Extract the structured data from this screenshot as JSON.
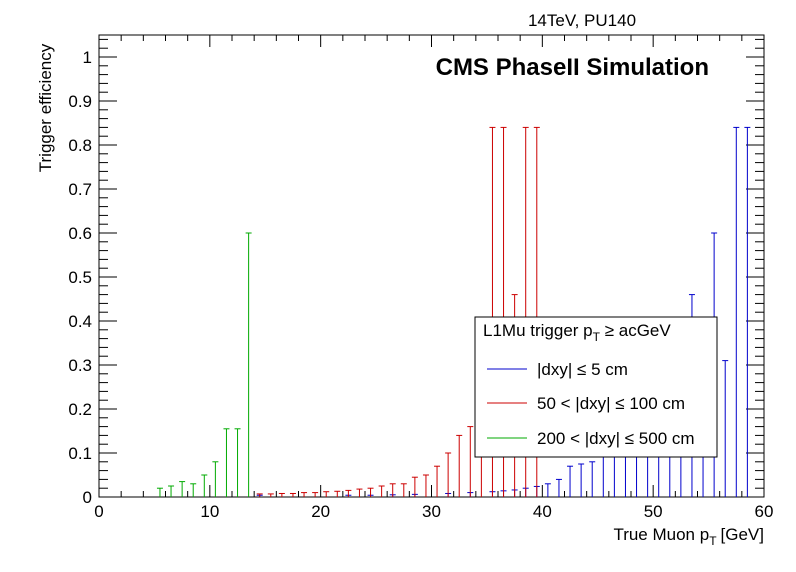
{
  "chart_data": {
    "type": "scatter",
    "top_label": "14TeV, PU140",
    "watermark": "CMS PhaseII Simulation",
    "xlabel_main": "True Muon p",
    "xlabel_sub": "T",
    "xlabel_unit": "[GeV]",
    "ylabel": "Trigger efficiency",
    "xlim": [
      0,
      60
    ],
    "ylim": [
      0,
      1.05
    ],
    "x_ticks": [
      0,
      10,
      20,
      30,
      40,
      50,
      60
    ],
    "y_ticks": [
      0,
      0.1,
      0.2,
      0.3,
      0.4,
      0.5,
      0.6,
      0.7,
      0.8,
      0.9,
      1
    ],
    "x_tick_labels": [
      "0",
      "10",
      "20",
      "30",
      "40",
      "50",
      "60"
    ],
    "y_tick_labels": [
      "0",
      "0.1",
      "0.2",
      "0.3",
      "0.4",
      "0.5",
      "0.6",
      "0.7",
      "0.8",
      "0.9",
      "1"
    ],
    "legend": {
      "header_main": "L1Mu trigger p",
      "header_sub": "T",
      "header_tail": " ≥ acGeV",
      "placement": "lower-right"
    },
    "series": [
      {
        "name": "|dxy| ≤ 5 cm",
        "color": "#0000cc",
        "x": [
          14.5,
          22.5,
          24.5,
          26.5,
          28.5,
          31.5,
          33.5,
          35.5,
          36.5,
          37.5,
          38.5,
          39.5,
          40.5,
          41.5,
          42.5,
          43.5,
          44.5,
          45.5,
          46.5,
          47.5,
          48.5,
          49.5,
          50.5,
          51.5,
          52.5,
          53.5,
          54.5,
          55.5,
          56.5,
          57.5,
          58.5
        ],
        "err_high": [
          0.004,
          0.004,
          0.004,
          0.005,
          0.006,
          0.008,
          0.01,
          0.012,
          0.014,
          0.016,
          0.02,
          0.024,
          0.03,
          0.04,
          0.07,
          0.075,
          0.08,
          0.1,
          0.11,
          0.12,
          0.14,
          0.16,
          0.18,
          0.2,
          0.22,
          0.46,
          0.25,
          0.6,
          0.31,
          0.84,
          0.84
        ]
      },
      {
        "name": "50 < |dxy| ≤ 100 cm",
        "color": "#cc0000",
        "x": [
          14.5,
          15.5,
          16.5,
          17.5,
          18.5,
          19.5,
          20.5,
          21.5,
          22.5,
          23.5,
          24.5,
          25.5,
          26.5,
          27.5,
          28.5,
          29.5,
          30.5,
          31.5,
          32.5,
          33.5,
          34.5,
          35.5,
          36.5,
          37.5,
          38.5,
          39.5
        ],
        "err_high": [
          0.007,
          0.007,
          0.008,
          0.008,
          0.01,
          0.01,
          0.012,
          0.013,
          0.015,
          0.018,
          0.02,
          0.025,
          0.03,
          0.03,
          0.045,
          0.05,
          0.07,
          0.1,
          0.14,
          0.16,
          0.18,
          0.84,
          0.84,
          0.46,
          0.84,
          0.84
        ]
      },
      {
        "name": "200 < |dxy| ≤ 500 cm",
        "color": "#00aa00",
        "x": [
          5.5,
          6.5,
          7.5,
          8.5,
          9.5,
          10.5,
          11.5,
          12.5,
          13.5
        ],
        "err_high": [
          0.02,
          0.025,
          0.035,
          0.03,
          0.05,
          0.08,
          0.155,
          0.155,
          0.6
        ]
      }
    ]
  }
}
